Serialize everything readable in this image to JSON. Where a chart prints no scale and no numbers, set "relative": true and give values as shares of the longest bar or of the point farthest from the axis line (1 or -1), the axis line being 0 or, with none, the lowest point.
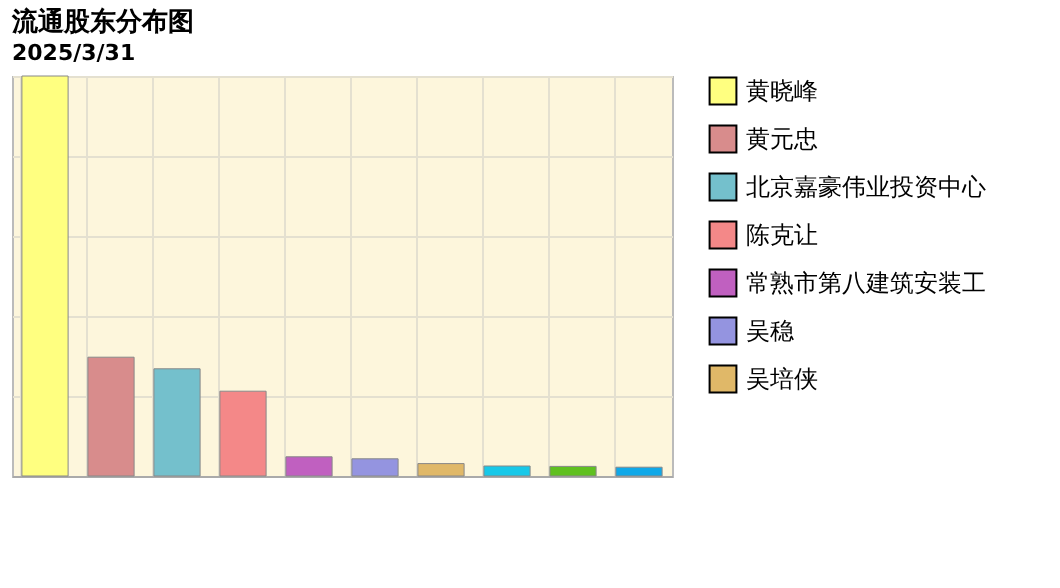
{
  "chart_data": {
    "type": "bar",
    "title": "流通股东分布图",
    "subtitle": "2025/3/31",
    "relative": true,
    "stacked": true,
    "categories": [
      null,
      null,
      null,
      null,
      null,
      null,
      null,
      null,
      null,
      null
    ],
    "series": [
      {
        "name": "黄晓峰",
        "color": "#ffff80",
        "values": [
          1,
          0,
          0,
          0,
          0,
          0,
          0,
          0,
          0,
          0
        ]
      },
      {
        "name": "黄元忠",
        "color": "#d88c8c",
        "values": [
          0,
          0.297,
          0,
          0,
          0,
          0,
          0,
          0,
          0,
          0
        ]
      },
      {
        "name": "北京嘉豪伟业投资中心",
        "color": "#74c0cc",
        "values": [
          0,
          0,
          0.268,
          0,
          0,
          0,
          0,
          0,
          0,
          0
        ]
      },
      {
        "name": "陈克让",
        "color": "#f48888",
        "values": [
          0,
          0,
          0,
          0.212,
          0,
          0,
          0,
          0,
          0,
          0
        ]
      },
      {
        "name": "常熟市第八建筑安装工",
        "color": "#c060c0",
        "values": [
          0,
          0,
          0,
          0,
          0.048,
          0,
          0,
          0,
          0,
          0
        ]
      },
      {
        "name": "吴稳",
        "color": "#9494e0",
        "values": [
          0,
          0,
          0,
          0,
          0,
          0.043,
          0,
          0,
          0,
          0
        ]
      },
      {
        "name": "吴培侠",
        "color": "#e0b868",
        "values": [
          0,
          0,
          0,
          0,
          0,
          0,
          0.031,
          0,
          0,
          0
        ]
      },
      {
        "color": "#18c8e8",
        "values": [
          0,
          0,
          0,
          0,
          0,
          0,
          0,
          0.025,
          0,
          0
        ]
      },
      {
        "color": "#60c020",
        "values": [
          0,
          0,
          0,
          0,
          0,
          0,
          0,
          0,
          0.024,
          0
        ]
      },
      {
        "color": "#10a8e8",
        "values": [
          0,
          0,
          0,
          0,
          0,
          0,
          0,
          0,
          0,
          0.022
        ]
      }
    ],
    "grid": true,
    "legend": "right"
  }
}
